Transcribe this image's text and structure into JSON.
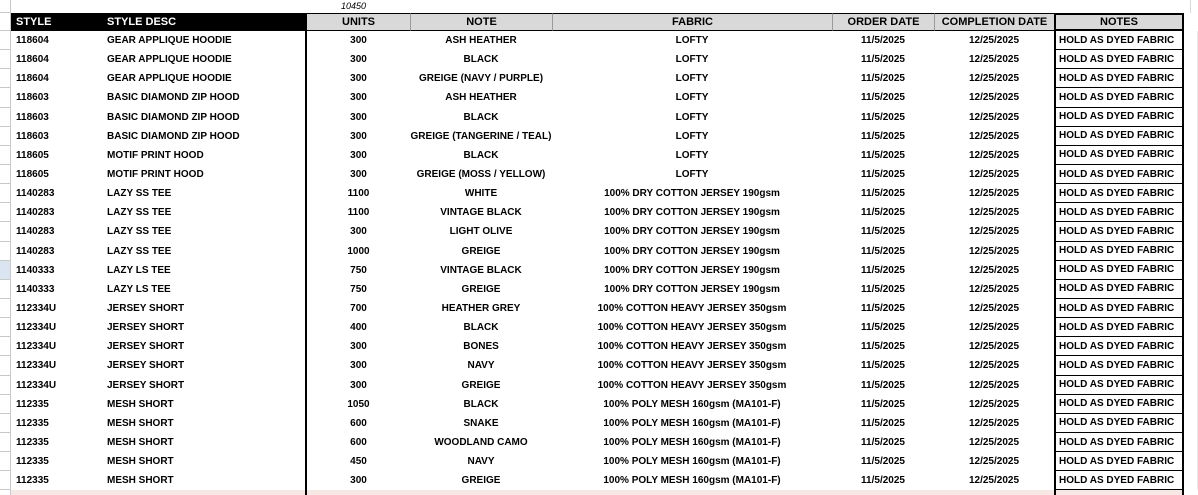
{
  "sheet": {
    "sum_cell_value": "10450",
    "header": {
      "style": "STYLE",
      "style_desc": "STYLE DESC",
      "units": "UNITS",
      "note": "NOTE",
      "fabric": "FABRIC",
      "order_date": "ORDER DATE",
      "completion_date": "COMPLETION DATE",
      "notes": "NOTES"
    },
    "selected_row_index": 12,
    "colors": {
      "header_black_bg": "#000000",
      "header_black_text": "#ffffff",
      "header_gray_bg": "#d9d9d9",
      "selected_cell_fill": "#dbe5f1",
      "partial_row_fill": "#f7e8e5",
      "gridline": "#c9c9c9",
      "cell_border": "#000000"
    },
    "rows": [
      {
        "style": "118604",
        "desc": "GEAR APPLIQUE HOODIE",
        "units": "300",
        "note": "ASH HEATHER",
        "fabric": "LOFTY",
        "order": "11/5/2025",
        "completion": "12/25/2025",
        "notes": "HOLD AS DYED FABRIC"
      },
      {
        "style": "118604",
        "desc": "GEAR APPLIQUE HOODIE",
        "units": "300",
        "note": "BLACK",
        "fabric": "LOFTY",
        "order": "11/5/2025",
        "completion": "12/25/2025",
        "notes": "HOLD AS DYED FABRIC"
      },
      {
        "style": "118604",
        "desc": "GEAR APPLIQUE HOODIE",
        "units": "300",
        "note": "GREIGE (NAVY / PURPLE)",
        "fabric": "LOFTY",
        "order": "11/5/2025",
        "completion": "12/25/2025",
        "notes": "HOLD AS DYED FABRIC"
      },
      {
        "style": "118603",
        "desc": "BASIC DIAMOND ZIP HOOD",
        "units": "300",
        "note": "ASH HEATHER",
        "fabric": "LOFTY",
        "order": "11/5/2025",
        "completion": "12/25/2025",
        "notes": "HOLD AS DYED FABRIC"
      },
      {
        "style": "118603",
        "desc": "BASIC DIAMOND ZIP HOOD",
        "units": "300",
        "note": "BLACK",
        "fabric": "LOFTY",
        "order": "11/5/2025",
        "completion": "12/25/2025",
        "notes": "HOLD AS DYED FABRIC"
      },
      {
        "style": "118603",
        "desc": "BASIC DIAMOND ZIP HOOD",
        "units": "300",
        "note": "GREIGE (TANGERINE / TEAL)",
        "fabric": "LOFTY",
        "order": "11/5/2025",
        "completion": "12/25/2025",
        "notes": "HOLD AS DYED FABRIC"
      },
      {
        "style": "118605",
        "desc": "MOTIF PRINT HOOD",
        "units": "300",
        "note": "BLACK",
        "fabric": "LOFTY",
        "order": "11/5/2025",
        "completion": "12/25/2025",
        "notes": "HOLD AS DYED FABRIC"
      },
      {
        "style": "118605",
        "desc": "MOTIF PRINT HOOD",
        "units": "300",
        "note": "GREIGE (MOSS / YELLOW)",
        "fabric": "LOFTY",
        "order": "11/5/2025",
        "completion": "12/25/2025",
        "notes": "HOLD AS DYED FABRIC"
      },
      {
        "style": "1140283",
        "desc": "LAZY SS TEE",
        "units": "1100",
        "note": "WHITE",
        "fabric": "100% DRY COTTON JERSEY 190gsm",
        "order": "11/5/2025",
        "completion": "12/25/2025",
        "notes": "HOLD AS DYED FABRIC"
      },
      {
        "style": "1140283",
        "desc": "LAZY SS TEE",
        "units": "1100",
        "note": "VINTAGE BLACK",
        "fabric": "100% DRY COTTON JERSEY 190gsm",
        "order": "11/5/2025",
        "completion": "12/25/2025",
        "notes": "HOLD AS DYED FABRIC"
      },
      {
        "style": "1140283",
        "desc": "LAZY SS TEE",
        "units": "300",
        "note": "LIGHT OLIVE",
        "fabric": "100% DRY COTTON JERSEY 190gsm",
        "order": "11/5/2025",
        "completion": "12/25/2025",
        "notes": "HOLD AS DYED FABRIC"
      },
      {
        "style": "1140283",
        "desc": "LAZY SS TEE",
        "units": "1000",
        "note": "GREIGE",
        "fabric": "100% DRY COTTON JERSEY 190gsm",
        "order": "11/5/2025",
        "completion": "12/25/2025",
        "notes": "HOLD AS DYED FABRIC"
      },
      {
        "style": "1140333",
        "desc": "LAZY LS TEE",
        "units": "750",
        "note": "VINTAGE BLACK",
        "fabric": "100% DRY COTTON JERSEY 190gsm",
        "order": "11/5/2025",
        "completion": "12/25/2025",
        "notes": "HOLD AS DYED FABRIC"
      },
      {
        "style": "1140333",
        "desc": "LAZY LS TEE",
        "units": "750",
        "note": "GREIGE",
        "fabric": "100% DRY COTTON JERSEY 190gsm",
        "order": "11/5/2025",
        "completion": "12/25/2025",
        "notes": "HOLD AS DYED FABRIC"
      },
      {
        "style": "112334U",
        "desc": "JERSEY SHORT",
        "units": "700",
        "note": "HEATHER GREY",
        "fabric": "100% COTTON HEAVY JERSEY 350gsm",
        "order": "11/5/2025",
        "completion": "12/25/2025",
        "notes": "HOLD AS DYED FABRIC"
      },
      {
        "style": "112334U",
        "desc": "JERSEY SHORT",
        "units": "400",
        "note": "BLACK",
        "fabric": "100% COTTON HEAVY JERSEY 350gsm",
        "order": "11/5/2025",
        "completion": "12/25/2025",
        "notes": "HOLD AS DYED FABRIC"
      },
      {
        "style": "112334U",
        "desc": "JERSEY SHORT",
        "units": "300",
        "note": "BONES",
        "fabric": "100% COTTON HEAVY JERSEY 350gsm",
        "order": "11/5/2025",
        "completion": "12/25/2025",
        "notes": "HOLD AS DYED FABRIC"
      },
      {
        "style": "112334U",
        "desc": "JERSEY SHORT",
        "units": "300",
        "note": "NAVY",
        "fabric": "100% COTTON HEAVY JERSEY 350gsm",
        "order": "11/5/2025",
        "completion": "12/25/2025",
        "notes": "HOLD AS DYED FABRIC"
      },
      {
        "style": "112334U",
        "desc": "JERSEY SHORT",
        "units": "300",
        "note": "GREIGE",
        "fabric": "100% COTTON HEAVY JERSEY 350gsm",
        "order": "11/5/2025",
        "completion": "12/25/2025",
        "notes": "HOLD AS DYED FABRIC"
      },
      {
        "style": "112335",
        "desc": "MESH SHORT",
        "units": "1050",
        "note": "BLACK",
        "fabric": "100% POLY MESH 160gsm (MA101-F)",
        "order": "11/5/2025",
        "completion": "12/25/2025",
        "notes": "HOLD AS DYED FABRIC"
      },
      {
        "style": "112335",
        "desc": "MESH SHORT",
        "units": "600",
        "note": "SNAKE",
        "fabric": "100% POLY MESH 160gsm (MA101-F)",
        "order": "11/5/2025",
        "completion": "12/25/2025",
        "notes": "HOLD AS DYED FABRIC"
      },
      {
        "style": "112335",
        "desc": "MESH SHORT",
        "units": "600",
        "note": "WOODLAND CAMO",
        "fabric": "100% POLY MESH 160gsm (MA101-F)",
        "order": "11/5/2025",
        "completion": "12/25/2025",
        "notes": "HOLD AS DYED FABRIC"
      },
      {
        "style": "112335",
        "desc": "MESH SHORT",
        "units": "450",
        "note": "NAVY",
        "fabric": "100% POLY MESH 160gsm (MA101-F)",
        "order": "11/5/2025",
        "completion": "12/25/2025",
        "notes": "HOLD AS DYED FABRIC"
      },
      {
        "style": "112335",
        "desc": "MESH SHORT",
        "units": "300",
        "note": "GREIGE",
        "fabric": "100% POLY MESH 160gsm (MA101-F)",
        "order": "11/5/2025",
        "completion": "12/25/2025",
        "notes": "HOLD AS DYED FABRIC"
      }
    ]
  }
}
